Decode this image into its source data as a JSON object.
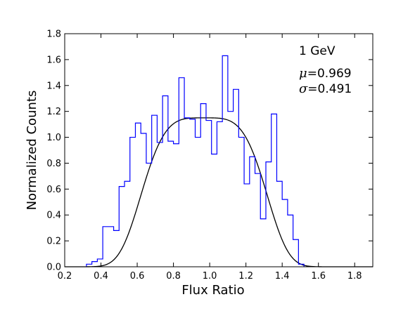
{
  "chart_data": {
    "type": "histogram",
    "xlabel": "Flux Ratio",
    "ylabel": "Normalized Counts",
    "xlim": [
      0.2,
      1.9
    ],
    "ylim": [
      0.0,
      1.8
    ],
    "xticks": [
      "0.2",
      "0.4",
      "0.6",
      "0.8",
      "1.0",
      "1.2",
      "1.4",
      "1.6",
      "1.8"
    ],
    "yticks": [
      "0.0",
      "0.2",
      "0.4",
      "0.6",
      "0.8",
      "1.0",
      "1.2",
      "1.4",
      "1.6",
      "1.8"
    ],
    "grid": false,
    "annotations": {
      "energy": "1 GeV",
      "mu_symbol": "μ",
      "mu_value": "=0.969",
      "sigma_symbol": "σ",
      "sigma_value": "=0.491"
    },
    "histogram": {
      "color": "#0000ff",
      "bin_edges": [
        0.32,
        0.35,
        0.38,
        0.41,
        0.44,
        0.47,
        0.5,
        0.53,
        0.56,
        0.59,
        0.62,
        0.65,
        0.68,
        0.71,
        0.74,
        0.77,
        0.8,
        0.83,
        0.86,
        0.89,
        0.92,
        0.95,
        0.98,
        1.01,
        1.04,
        1.07,
        1.1,
        1.13,
        1.16,
        1.19,
        1.22,
        1.25,
        1.28,
        1.31,
        1.34,
        1.37,
        1.4,
        1.43,
        1.46,
        1.49,
        1.52
      ],
      "values": [
        0.02,
        0.04,
        0.06,
        0.31,
        0.31,
        0.28,
        0.62,
        0.66,
        1.0,
        1.11,
        1.03,
        0.8,
        1.17,
        0.96,
        1.32,
        0.97,
        0.95,
        1.46,
        1.15,
        1.14,
        1.0,
        1.26,
        1.13,
        0.87,
        1.12,
        1.63,
        1.2,
        1.37,
        1.0,
        0.64,
        0.85,
        0.72,
        0.37,
        0.81,
        1.18,
        0.66,
        0.52,
        0.4,
        0.21,
        0.02
      ]
    },
    "fit_curve": {
      "type": "gaussian",
      "mu": 0.969,
      "sigma": 0.491,
      "amplitude": 1.15,
      "shape_exponent": 4,
      "color": "#000000"
    }
  }
}
